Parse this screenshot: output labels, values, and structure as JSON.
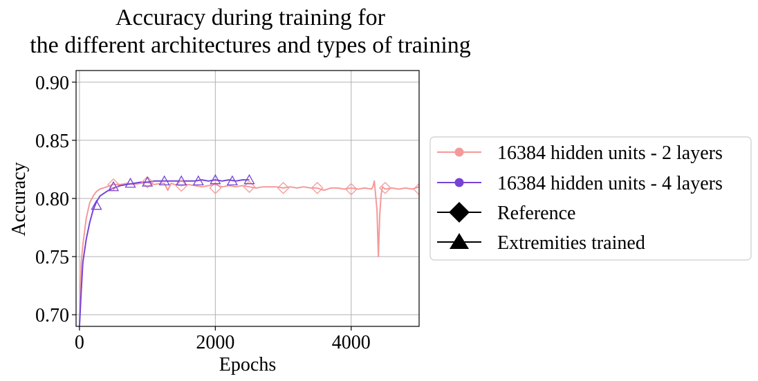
{
  "chart_data": {
    "type": "line",
    "title": [
      "Accuracy during training for",
      "the different architectures and types of training"
    ],
    "xlabel": "Epochs",
    "ylabel": "Accuracy",
    "xlim": [
      -50,
      5000
    ],
    "ylim": [
      0.69,
      0.91
    ],
    "xticks": [
      0,
      2000,
      4000
    ],
    "xtick_labels": [
      "0",
      "2000",
      "4000"
    ],
    "yticks": [
      0.7,
      0.75,
      0.8,
      0.85,
      0.9
    ],
    "ytick_labels": [
      "0.70",
      "0.75",
      "0.80",
      "0.85",
      "0.90"
    ],
    "grid": true,
    "legend_position": "right, outside plot",
    "series": [
      {
        "name": "16384 hidden units - 2 layers",
        "color": "#f4999a",
        "x": [
          0,
          25,
          50,
          100,
          150,
          200,
          250,
          300,
          350,
          400,
          450,
          500,
          600,
          700,
          800,
          900,
          1000,
          1100,
          1200,
          1250,
          1300,
          1350,
          1400,
          1500,
          1600,
          1700,
          1800,
          1900,
          2000,
          2100,
          2200,
          2300,
          2400,
          2500,
          2600,
          2700,
          2800,
          2900,
          3000,
          3100,
          3200,
          3300,
          3400,
          3500,
          3600,
          3700,
          3800,
          3900,
          4000,
          4100,
          4200,
          4300,
          4320,
          4340,
          4360,
          4380,
          4400,
          4420,
          4440,
          4460,
          4500,
          4600,
          4700,
          4800,
          4900,
          5000
        ],
        "y": [
          0.69,
          0.745,
          0.76,
          0.783,
          0.796,
          0.802,
          0.806,
          0.808,
          0.809,
          0.81,
          0.811,
          0.812,
          0.812,
          0.813,
          0.812,
          0.813,
          0.814,
          0.812,
          0.813,
          0.813,
          0.807,
          0.813,
          0.812,
          0.811,
          0.812,
          0.811,
          0.81,
          0.811,
          0.812,
          0.81,
          0.811,
          0.81,
          0.811,
          0.81,
          0.809,
          0.81,
          0.81,
          0.81,
          0.809,
          0.81,
          0.809,
          0.81,
          0.809,
          0.809,
          0.807,
          0.809,
          0.809,
          0.808,
          0.809,
          0.808,
          0.809,
          0.808,
          0.81,
          0.815,
          0.803,
          0.79,
          0.75,
          0.785,
          0.803,
          0.81,
          0.808,
          0.809,
          0.808,
          0.809,
          0.808,
          0.81
        ]
      },
      {
        "name": "16384 hidden units - 4 layers",
        "color": "#7543d6",
        "x": [
          0,
          25,
          50,
          100,
          150,
          200,
          250,
          300,
          400,
          500,
          600,
          700,
          800,
          900,
          1000,
          1100,
          1200,
          1300,
          1400,
          1500,
          1600,
          1700,
          1800,
          1900,
          2000,
          2100,
          2200,
          2300,
          2400,
          2500
        ],
        "y": [
          0.69,
          0.72,
          0.745,
          0.765,
          0.779,
          0.79,
          0.797,
          0.802,
          0.806,
          0.809,
          0.811,
          0.812,
          0.813,
          0.814,
          0.814,
          0.815,
          0.815,
          0.815,
          0.815,
          0.815,
          0.815,
          0.815,
          0.816,
          0.815,
          0.816,
          0.815,
          0.816,
          0.815,
          0.816,
          0.816
        ]
      }
    ],
    "markers": [
      {
        "series": "16384 hidden units - 2 layers",
        "shape": "diamond",
        "x": [
          500,
          1000,
          1500,
          2000,
          2500,
          3000,
          3500,
          4000,
          4500,
          5000
        ],
        "y": [
          0.812,
          0.814,
          0.811,
          0.809,
          0.81,
          0.809,
          0.809,
          0.808,
          0.809,
          0.808
        ]
      },
      {
        "series": "16384 hidden units - 4 layers",
        "shape": "triangle",
        "x": [
          250,
          500,
          750,
          1000,
          1250,
          1500,
          1750,
          2000,
          2250,
          2500
        ],
        "y": [
          0.794,
          0.81,
          0.813,
          0.814,
          0.815,
          0.815,
          0.815,
          0.816,
          0.815,
          0.816
        ]
      }
    ],
    "legend": [
      {
        "label": "16384 hidden units - 2 layers",
        "color": "#f4999a",
        "marker": "circle"
      },
      {
        "label": "16384 hidden units - 4 layers",
        "color": "#7543d6",
        "marker": "circle"
      },
      {
        "label": "Reference",
        "color": "#000000",
        "marker": "diamond"
      },
      {
        "label": "Extremities trained",
        "color": "#000000",
        "marker": "triangle"
      }
    ]
  }
}
